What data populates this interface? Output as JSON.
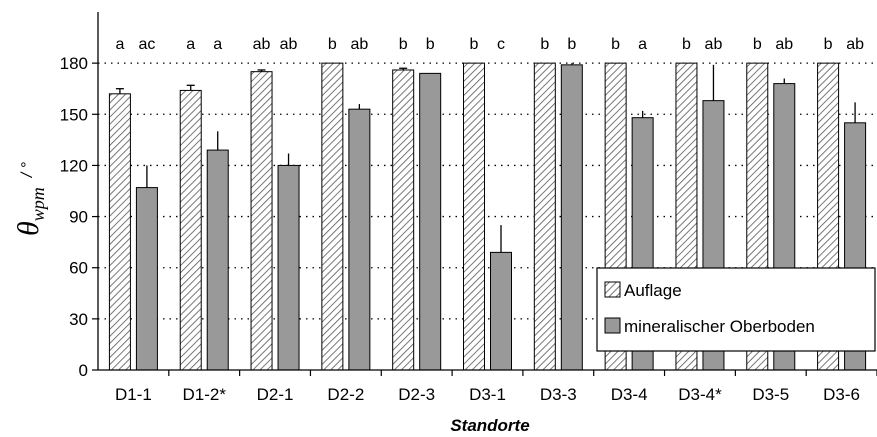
{
  "chart_data": {
    "type": "bar",
    "categories": [
      "D1-1",
      "D1-2*",
      "D2-1",
      "D2-2",
      "D2-3",
      "D3-1",
      "D3-3",
      "D3-4",
      "D3-4*",
      "D3-5",
      "D3-6"
    ],
    "series": [
      {
        "name": "Auflage",
        "pattern": "hatched",
        "values": [
          162,
          164,
          175,
          180,
          176,
          180,
          180,
          180,
          180,
          180,
          180
        ],
        "error": [
          3,
          3,
          1,
          0,
          1,
          0,
          0,
          0,
          0,
          0,
          0
        ],
        "letters": [
          "a",
          "a",
          "ab",
          "b",
          "b",
          "b",
          "b",
          "b",
          "b",
          "b",
          "b"
        ]
      },
      {
        "name": "mineralischer Oberboden",
        "color": "#999999",
        "values": [
          107,
          129,
          120,
          153,
          174,
          69,
          179,
          148,
          158,
          168,
          145
        ],
        "error": [
          13,
          11,
          7,
          3,
          0,
          16,
          1,
          4,
          21,
          3,
          12
        ],
        "letters": [
          "ac",
          "a",
          "ab",
          "ab",
          "b",
          "c",
          "b",
          "a",
          "ab",
          "ab",
          "ab"
        ]
      }
    ],
    "xlabel": "Standorte",
    "ylabel": {
      "symbol": "θ",
      "subscript": "wpm",
      "unit": "/ °"
    },
    "ylim": [
      0,
      210
    ],
    "yticks": [
      0,
      30,
      60,
      90,
      120,
      150,
      180
    ],
    "grid": "horizontal dotted",
    "legend_position": "bottom-right"
  }
}
